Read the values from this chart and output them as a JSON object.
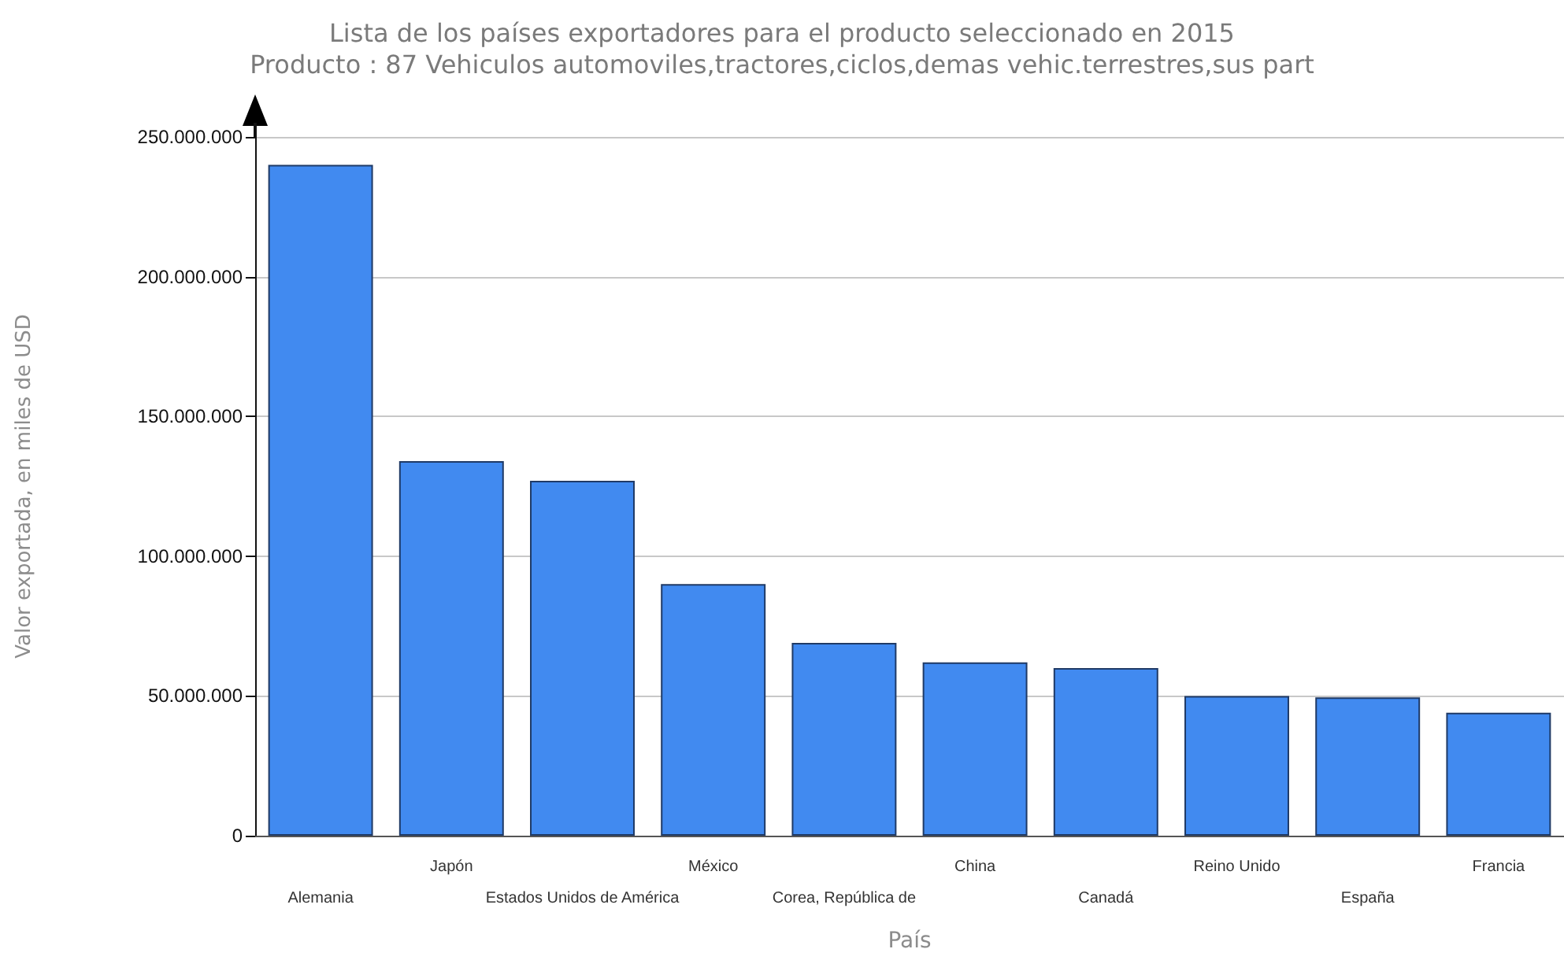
{
  "chart_data": {
    "type": "bar",
    "title": "Lista de los países exportadores para el producto seleccionado en 2015",
    "subtitle": "Producto : 87 Vehiculos automoviles,tractores,ciclos,demas vehic.terrestres,sus part",
    "xlabel": "País",
    "ylabel": "Valor exportada, en miles de USD",
    "categories": [
      "Alemania",
      "Japón",
      "Estados Unidos de América",
      "México",
      "Corea, República de",
      "China",
      "Canadá",
      "Reino Unido",
      "España",
      "Francia"
    ],
    "values": [
      240000000,
      134000000,
      127000000,
      90000000,
      69000000,
      62000000,
      60000000,
      50000000,
      49500000,
      44000000
    ],
    "color": "#418af0",
    "ylim": [
      0,
      250000000
    ],
    "yticks": [
      {
        "value": 0,
        "label": "0"
      },
      {
        "value": 50000000,
        "label": "50.000.000"
      },
      {
        "value": 100000000,
        "label": "100.000.000"
      },
      {
        "value": 150000000,
        "label": "150.000.000"
      },
      {
        "value": 200000000,
        "label": "200.000.000"
      },
      {
        "value": 250000000,
        "label": "250.000.000"
      }
    ],
    "grid": "y"
  }
}
